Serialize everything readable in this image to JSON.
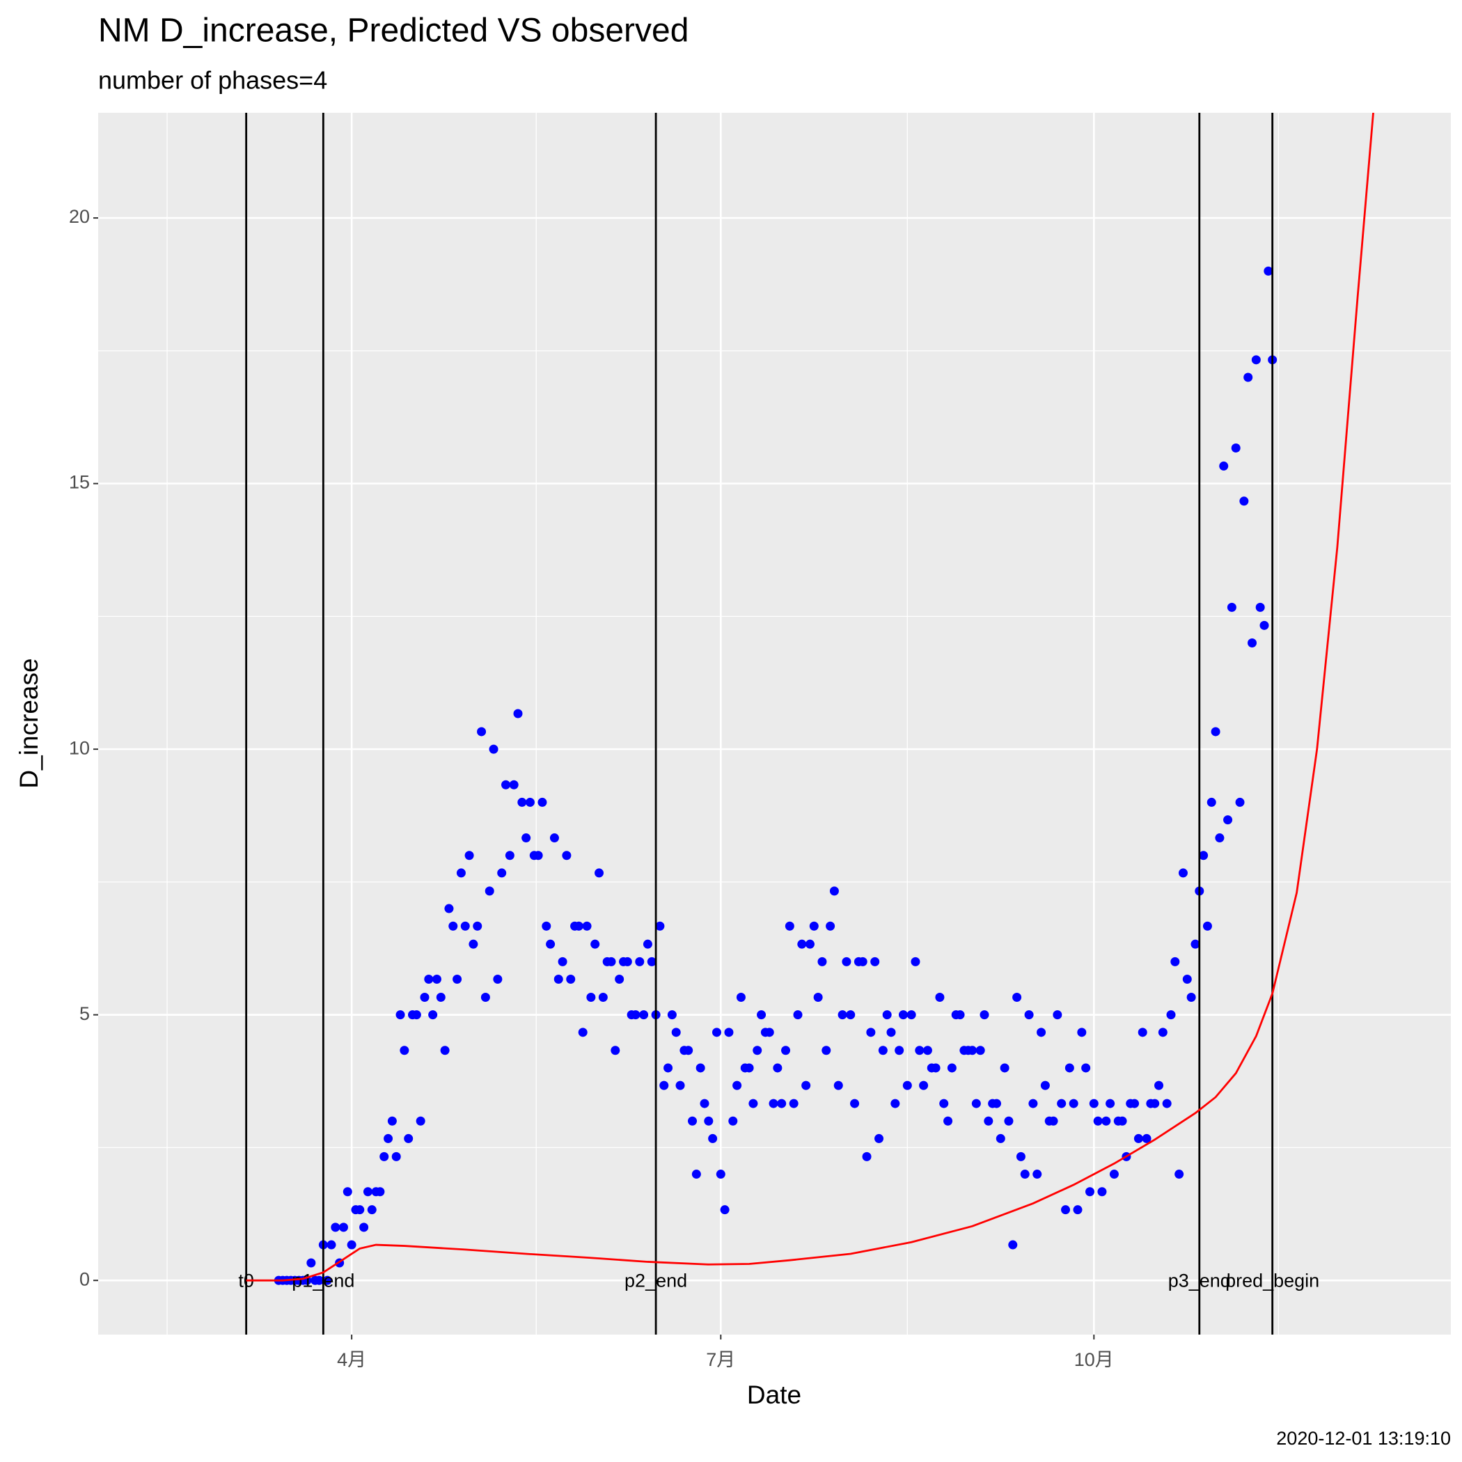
{
  "chart_data": {
    "type": "scatter-line",
    "title": "NM D_increase, Predicted VS observed",
    "subtitle": "number of phases=4",
    "x_label": "Date",
    "y_label": "D_increase",
    "caption": "2020-12-01 13:19:10",
    "xlim": [
      29.5,
      363
    ],
    "ylim": [
      -1.02,
      21.98
    ],
    "xticks": [
      {
        "value": 92,
        "label": "4月"
      },
      {
        "value": 183,
        "label": "7月"
      },
      {
        "value": 275,
        "label": "10月"
      }
    ],
    "x_minor_ticks": [
      46.5,
      137.5,
      229,
      320.5
    ],
    "yticks": [
      0,
      5,
      10,
      15,
      20
    ],
    "y_minor_ticks": [
      2.5,
      7.5,
      12.5,
      17.5
    ],
    "grid": true,
    "series": [
      {
        "name": "observed",
        "kind": "points",
        "color": "#0000ff",
        "x": [
          74,
          75,
          76,
          77,
          78,
          79,
          80,
          81,
          82,
          83,
          84,
          85,
          86,
          87,
          88,
          89,
          90,
          91,
          92,
          93,
          94,
          95,
          96,
          97,
          98,
          99,
          100,
          101,
          102,
          103,
          104,
          105,
          106,
          107,
          108,
          109,
          110,
          111,
          112,
          113,
          114,
          115,
          116,
          117,
          118,
          119,
          120,
          121,
          122,
          123,
          124,
          125,
          126,
          127,
          128,
          129,
          130,
          131,
          132,
          133,
          134,
          135,
          136,
          137,
          138,
          139,
          140,
          141,
          142,
          143,
          144,
          145,
          146,
          147,
          148,
          149,
          150,
          151,
          152,
          153,
          154,
          155,
          156,
          157,
          158,
          159,
          160,
          161,
          162,
          163,
          164,
          165,
          166,
          167,
          168,
          169,
          170,
          171,
          172,
          173,
          174,
          175,
          176,
          177,
          178,
          179,
          180,
          181,
          182,
          183,
          184,
          185,
          186,
          187,
          188,
          189,
          190,
          191,
          192,
          193,
          194,
          195,
          196,
          197,
          198,
          199,
          200,
          201,
          202,
          203,
          204,
          205,
          206,
          207,
          208,
          209,
          210,
          211,
          212,
          213,
          214,
          215,
          216,
          217,
          218,
          219,
          220,
          221,
          222,
          223,
          224,
          225,
          226,
          227,
          228,
          229,
          230,
          231,
          232,
          233,
          234,
          235,
          236,
          237,
          238,
          239,
          240,
          241,
          242,
          243,
          244,
          245,
          246,
          247,
          248,
          249,
          250,
          251,
          252,
          253,
          254,
          255,
          256,
          257,
          258,
          259,
          260,
          261,
          262,
          263,
          264,
          265,
          266,
          267,
          268,
          269,
          270,
          271,
          272,
          273,
          274,
          275,
          276,
          277,
          278,
          279,
          280,
          281,
          282,
          283,
          284,
          285,
          286,
          287,
          288,
          289,
          290,
          291,
          292,
          293,
          294,
          295,
          296,
          297,
          298,
          299,
          300,
          301,
          302,
          303,
          304,
          305,
          306,
          307,
          308,
          309,
          310,
          311,
          312,
          313,
          314,
          315,
          316,
          317,
          318,
          319
        ],
        "values": [
          0,
          0,
          0,
          0,
          0,
          0,
          0,
          0,
          0.33,
          0,
          0,
          0.67,
          0,
          0.67,
          1,
          0.33,
          1,
          1.67,
          0.67,
          1.33,
          1.33,
          1,
          1.67,
          1.33,
          1.67,
          1.67,
          2.33,
          2.67,
          3,
          2.33,
          5,
          4.33,
          2.67,
          5,
          5,
          3,
          5.33,
          5.67,
          5,
          5.67,
          5.33,
          4.33,
          7,
          6.67,
          5.67,
          7.67,
          6.67,
          8,
          6.33,
          6.67,
          10.33,
          5.33,
          7.33,
          10,
          5.67,
          7.67,
          9.33,
          8,
          9.33,
          10.67,
          9,
          8.33,
          9,
          8,
          8,
          9,
          6.67,
          6.33,
          8.33,
          5.67,
          6,
          8,
          5.67,
          6.67,
          6.67,
          4.67,
          6.67,
          5.33,
          6.33,
          7.67,
          5.33,
          6,
          6,
          4.33,
          5.67,
          6,
          6,
          5,
          5,
          6,
          5,
          6.33,
          6,
          5,
          6.67,
          3.67,
          4,
          5,
          4.67,
          3.67,
          4.33,
          4.33,
          3,
          2,
          4,
          3.33,
          3,
          2.67,
          4.67,
          2,
          1.33,
          4.67,
          3,
          3.67,
          5.33,
          4,
          4,
          3.33,
          4.33,
          5,
          4.67,
          4.67,
          3.33,
          4,
          3.33,
          4.33,
          6.67,
          3.33,
          5,
          6.33,
          3.67,
          6.33,
          6.67,
          5.33,
          6,
          4.33,
          6.67,
          7.33,
          3.67,
          5,
          6,
          5,
          3.33,
          6,
          6,
          2.33,
          4.67,
          6,
          2.67,
          4.33,
          5,
          4.67,
          3.33,
          4.33,
          5,
          3.67,
          5,
          6,
          4.33,
          3.67,
          4.33,
          4,
          4,
          5.33,
          3.33,
          3,
          4,
          5,
          5,
          4.33,
          4.33,
          4.33,
          3.33,
          4.33,
          5,
          3,
          3.33,
          3.33,
          2.67,
          4,
          3,
          0.67,
          5.33,
          2.33,
          2,
          5,
          3.33,
          2,
          4.67,
          3.67,
          3,
          3,
          5,
          3.33,
          1.33,
          4,
          3.33,
          1.33,
          4.67,
          4,
          1.67,
          3.33,
          3,
          1.67,
          3,
          3.33,
          2,
          3,
          3,
          2.33,
          3.33,
          3.33,
          2.67,
          4.67,
          2.67,
          3.33,
          3.33,
          3.67,
          4.67,
          3.33,
          5,
          6,
          2,
          7.67,
          5.67,
          5.33,
          6.33,
          7.33,
          8,
          6.67,
          9,
          10.33,
          8.33,
          15.33,
          8.67,
          12.67,
          15.67,
          9,
          14.67,
          17,
          12,
          17.33,
          12.67,
          12.33,
          19,
          17.33
        ]
      },
      {
        "name": "predicted",
        "kind": "line",
        "color": "#ff0000",
        "x": [
          66,
          75,
          80,
          85,
          90,
          94,
          98,
          105,
          120,
          135,
          150,
          165,
          180,
          190,
          200,
          215,
          230,
          245,
          260,
          270,
          280,
          290,
          300,
          305,
          310,
          315,
          319,
          325,
          330,
          335,
          340,
          345
        ],
        "values": [
          0,
          0,
          0.03,
          0.15,
          0.4,
          0.6,
          0.67,
          0.65,
          0.58,
          0.5,
          0.43,
          0.35,
          0.3,
          0.31,
          0.38,
          0.5,
          0.72,
          1.02,
          1.45,
          1.8,
          2.2,
          2.65,
          3.15,
          3.45,
          3.9,
          4.6,
          5.4,
          7.3,
          10,
          13.8,
          18.5,
          23
        ]
      }
    ],
    "vlines": [
      {
        "label": "t0",
        "x": 66
      },
      {
        "label": "p1_end",
        "x": 85
      },
      {
        "label": "p2_end",
        "x": 167
      },
      {
        "label": "p3_end",
        "x": 301
      },
      {
        "label": "pred_begin",
        "x": 319
      }
    ]
  }
}
